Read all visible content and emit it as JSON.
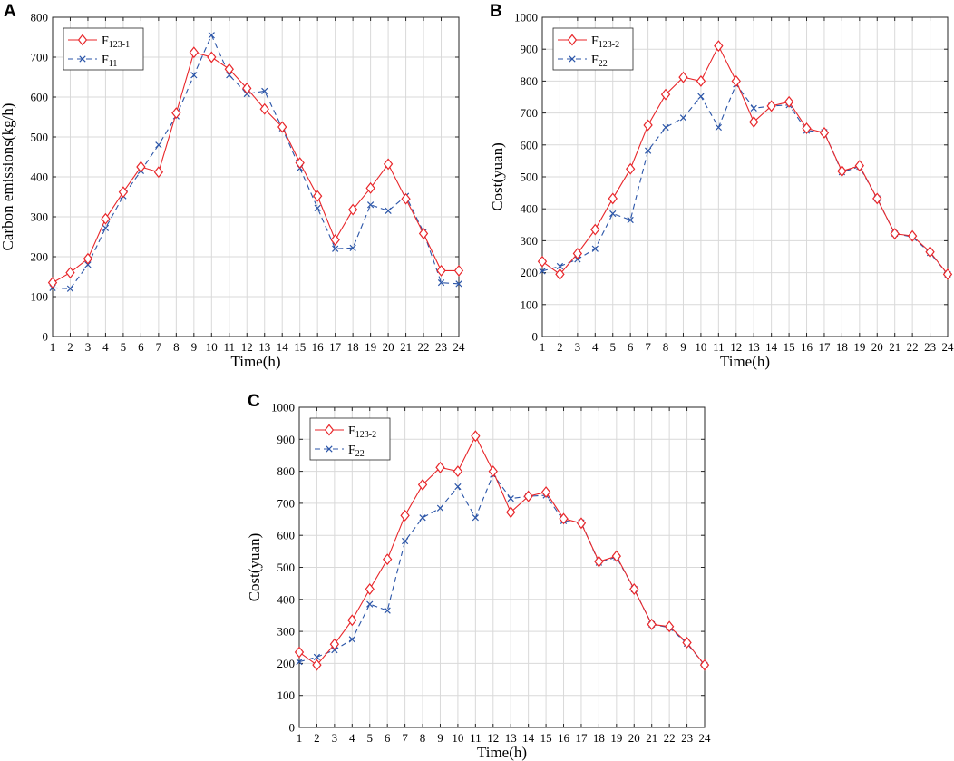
{
  "chart_data": [
    {
      "panel": "A",
      "type": "line",
      "title": "",
      "xlabel": "Time(h)",
      "ylabel": "Carbon emissions(kg/h)",
      "xlim": [
        1,
        24
      ],
      "ylim": [
        0,
        800
      ],
      "yticks": [
        0,
        100,
        200,
        300,
        400,
        500,
        600,
        700,
        800
      ],
      "x": [
        1,
        2,
        3,
        4,
        5,
        6,
        7,
        8,
        9,
        10,
        11,
        12,
        13,
        14,
        15,
        16,
        17,
        18,
        19,
        20,
        21,
        22,
        23,
        24
      ],
      "grid": true,
      "legend_position": "top-left",
      "series": [
        {
          "name": "F123-1",
          "base": "F",
          "sub": "123-1",
          "color": "#e8262a",
          "dash": "solid",
          "marker": "diamond",
          "values": [
            135,
            160,
            195,
            295,
            362,
            425,
            412,
            560,
            712,
            700,
            670,
            622,
            570,
            525,
            435,
            352,
            242,
            318,
            372,
            432,
            345,
            258,
            165,
            165
          ]
        },
        {
          "name": "F11",
          "base": "F",
          "sub": "11",
          "color": "#2b55a8",
          "dash": "dashed",
          "marker": "x",
          "values": [
            122,
            120,
            180,
            272,
            352,
            415,
            480,
            552,
            655,
            755,
            655,
            608,
            615,
            522,
            422,
            322,
            220,
            222,
            330,
            315,
            352,
            262,
            135,
            132
          ]
        }
      ]
    },
    {
      "panel": "B",
      "type": "line",
      "title": "",
      "xlabel": "Time(h)",
      "ylabel": "Cost(yuan)",
      "xlim": [
        1,
        24
      ],
      "ylim": [
        0,
        1000
      ],
      "yticks": [
        0,
        100,
        200,
        300,
        400,
        500,
        600,
        700,
        800,
        900,
        1000
      ],
      "x": [
        1,
        2,
        3,
        4,
        5,
        6,
        7,
        8,
        9,
        10,
        11,
        12,
        13,
        14,
        15,
        16,
        17,
        18,
        19,
        20,
        21,
        22,
        23,
        24
      ],
      "grid": true,
      "legend_position": "top-left",
      "series": [
        {
          "name": "F123-2",
          "base": "F",
          "sub": "123-2",
          "color": "#e8262a",
          "dash": "solid",
          "marker": "diamond",
          "values": [
            235,
            195,
            260,
            335,
            432,
            525,
            662,
            758,
            812,
            800,
            910,
            800,
            672,
            722,
            735,
            652,
            638,
            518,
            535,
            432,
            322,
            315,
            265,
            195
          ]
        },
        {
          "name": "F22",
          "base": "F",
          "sub": "22",
          "color": "#2b55a8",
          "dash": "dashed",
          "marker": "x",
          "values": [
            205,
            220,
            242,
            275,
            385,
            365,
            582,
            655,
            685,
            752,
            655,
            790,
            715,
            722,
            725,
            645,
            640,
            515,
            532,
            432,
            322,
            312,
            262,
            195
          ]
        }
      ]
    },
    {
      "panel": "C",
      "type": "line",
      "title": "",
      "xlabel": "Time(h)",
      "ylabel": "Cost(yuan)",
      "xlim": [
        1,
        24
      ],
      "ylim": [
        0,
        1000
      ],
      "yticks": [
        0,
        100,
        200,
        300,
        400,
        500,
        600,
        700,
        800,
        900,
        1000
      ],
      "x": [
        1,
        2,
        3,
        4,
        5,
        6,
        7,
        8,
        9,
        10,
        11,
        12,
        13,
        14,
        15,
        16,
        17,
        18,
        19,
        20,
        21,
        22,
        23,
        24
      ],
      "grid": true,
      "legend_position": "top-left",
      "series": [
        {
          "name": "F123-2",
          "base": "F",
          "sub": "123-2",
          "color": "#e8262a",
          "dash": "solid",
          "marker": "diamond",
          "values": [
            235,
            195,
            260,
            335,
            432,
            525,
            662,
            758,
            812,
            800,
            910,
            800,
            672,
            722,
            735,
            652,
            638,
            518,
            535,
            432,
            322,
            315,
            265,
            195
          ]
        },
        {
          "name": "F22",
          "base": "F",
          "sub": "22",
          "color": "#2b55a8",
          "dash": "dashed",
          "marker": "x",
          "values": [
            205,
            220,
            242,
            275,
            385,
            365,
            582,
            655,
            685,
            752,
            655,
            790,
            715,
            722,
            725,
            645,
            640,
            515,
            532,
            432,
            322,
            312,
            262,
            195
          ]
        }
      ]
    }
  ]
}
